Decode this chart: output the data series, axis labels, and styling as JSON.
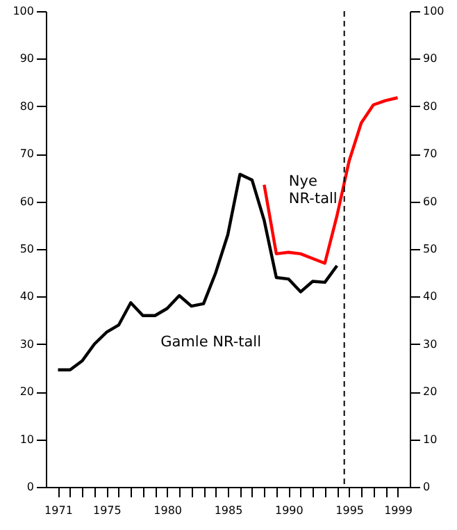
{
  "chart_data": {
    "type": "line",
    "x": [
      1971,
      1972,
      1973,
      1974,
      1975,
      1976,
      1977,
      1978,
      1979,
      1980,
      1981,
      1982,
      1983,
      1984,
      1985,
      1986,
      1987,
      1988,
      1989,
      1990,
      1991,
      1992,
      1993,
      1994
    ],
    "series": [
      {
        "name": "Gamle NR-tall",
        "color": "#000000",
        "values": [
          24.6,
          24.6,
          26.5,
          30,
          32.5,
          34,
          38.7,
          36,
          36,
          37.5,
          40.2,
          38,
          38.5,
          45,
          53,
          65.7,
          64.5,
          56,
          44,
          43.7,
          41,
          43.2,
          43,
          46.5
        ]
      },
      {
        "name": "Nye NR-tall",
        "color": "#ff0000",
        "x": [
          1988,
          1989,
          1990,
          1991,
          1992,
          1993,
          1994,
          1995,
          1996,
          1997,
          1998,
          1999
        ],
        "values": [
          63.5,
          49,
          49.3,
          49,
          48,
          47,
          57,
          68.5,
          76.5,
          80.3,
          81.2,
          81.8
        ]
      }
    ],
    "xlim": [
      1970,
      2000
    ],
    "xticks": [
      1971,
      {
        "value": 1972,
        "label": null
      },
      {
        "value": 1973,
        "label": null
      },
      {
        "value": 1974,
        "label": null
      },
      1975,
      {
        "value": 1976,
        "label": null
      },
      {
        "value": 1977,
        "label": null
      },
      {
        "value": 1978,
        "label": null
      },
      {
        "value": 1979,
        "label": null
      },
      1980,
      {
        "value": 1981,
        "label": null
      },
      {
        "value": 1982,
        "label": null
      },
      {
        "value": 1983,
        "label": null
      },
      {
        "value": 1984,
        "label": null
      },
      1985,
      {
        "value": 1986,
        "label": null
      },
      {
        "value": 1987,
        "label": null
      },
      {
        "value": 1988,
        "label": null
      },
      {
        "value": 1989,
        "label": null
      },
      1990,
      {
        "value": 1991,
        "label": null
      },
      {
        "value": 1992,
        "label": null
      },
      {
        "value": 1993,
        "label": null
      },
      {
        "value": 1994,
        "label": null
      },
      1995,
      {
        "value": 1996,
        "label": null
      },
      {
        "value": 1997,
        "label": null
      },
      {
        "value": 1998,
        "label": null
      },
      1999
    ],
    "ylim": [
      0,
      100
    ],
    "yticks": [
      0,
      10,
      20,
      30,
      40,
      50,
      60,
      70,
      80,
      90,
      100
    ],
    "y2lim": [
      0,
      100
    ],
    "y2ticks": [
      0,
      10,
      20,
      30,
      40,
      50,
      60,
      70,
      80,
      90,
      100
    ],
    "ref_lines": [
      {
        "axis": "x",
        "value": 1994.6,
        "color": "#000000",
        "line_style": "dashed"
      }
    ],
    "grid": false,
    "marker": "none",
    "line_style": "solid"
  }
}
